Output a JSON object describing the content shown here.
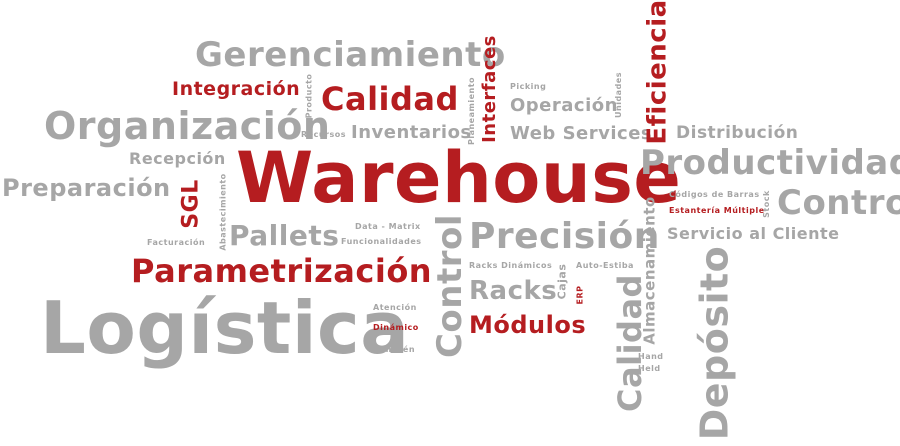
{
  "colors": {
    "gray": "#a6a6a6",
    "red": "#b51d20",
    "background": "#ffffff"
  },
  "words": {
    "warehouse": "Warehouse",
    "logistica": "Logística",
    "gerenciamiento": "Gerenciamiento",
    "organizacion": "Organización",
    "productividad": "Productividad",
    "control_h": "Control",
    "control_v": "Control",
    "parametrizacion": "Parametrización",
    "precision": "Precisión",
    "deposito": "Depósito",
    "calidad_h": "Calidad",
    "calidad_v": "Calidad",
    "eficiencia": "Eficiencia",
    "preparacion": "Preparación",
    "pallets": "Pallets",
    "modulos": "Módulos",
    "racks": "Racks",
    "interfaces": "Interfaces",
    "integracion": "Integración",
    "inventarios": "Inventarios",
    "operacion": "Operación",
    "web_services": "Web Services",
    "distribucion": "Distribución",
    "recepcion": "Recepción",
    "servicio_cliente": "Servicio al Cliente",
    "sgl": "SGL",
    "almacenamiento": "Almacenamiento",
    "cajas": "Cajas",
    "producto": "Producto",
    "recursos": "Recursos",
    "planeamiento": "Planeamiento",
    "picking": "Picking",
    "unidades": "Unidades",
    "codigos_barras": "Códigos de Barras",
    "estanteria_multiple": "Estantería Múltiple",
    "stock": "Stock",
    "data_matrix": "Data - Matrix",
    "funcionalidades": "Funcionalidades",
    "facturacion": "Facturación",
    "abastecimiento": "Abastecimiento",
    "racks_dinamicos": "Racks Dinámicos",
    "auto_estiba": "Auto-Estiba",
    "erp": "ERP",
    "atencion": "Atención",
    "dinamico": "Dinámico",
    "almacen": "Almacén",
    "hand": "Hand",
    "held": "Held"
  }
}
